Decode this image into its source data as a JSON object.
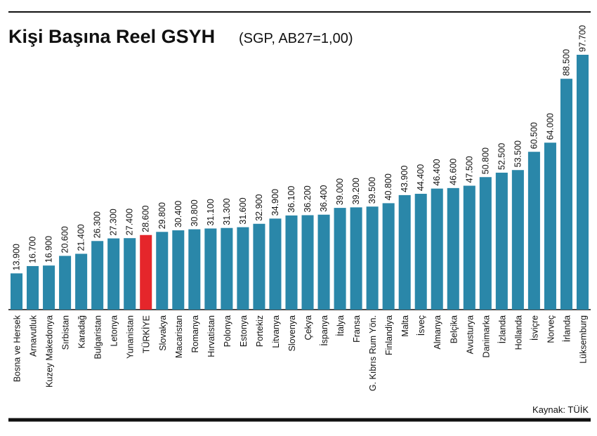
{
  "chart_data": {
    "type": "bar",
    "title": "Kişi Başına Reel GSYH",
    "subtitle": "(SGP, AB27=1,00)",
    "source": "Kaynak: TÜİK",
    "categories": [
      "Bosna ve Hersek",
      "Arnavutluk",
      "Kuzey Makedonya",
      "Sırbistan",
      "Karadağ",
      "Bulgaristan",
      "Letonya",
      "Yunanistan",
      "TÜRKİYE",
      "Slovakya",
      "Macaristan",
      "Romanya",
      "Hırvatistan",
      "Polonya",
      "Estonya",
      "Portekiz",
      "Litvanya",
      "Slovenya",
      "Çekya",
      "İspanya",
      "İtalya",
      "Fransa",
      "G. Kıbrıs Rum Yön.",
      "Finlandiya",
      "Malta",
      "İsveç",
      "Almanya",
      "Belçika",
      "Avusturya",
      "Danimarka",
      "İzlanda",
      "Hollanda",
      "İsviçre",
      "Norveç",
      "İrlanda",
      "Lüksemburg"
    ],
    "values": [
      13900,
      16700,
      16900,
      20600,
      21400,
      26300,
      27300,
      27400,
      28600,
      29800,
      30400,
      30800,
      31100,
      31300,
      31600,
      32900,
      34900,
      36100,
      36200,
      36400,
      39000,
      39200,
      39500,
      40800,
      43900,
      44400,
      46400,
      46600,
      47500,
      50800,
      52500,
      53500,
      60500,
      64000,
      88500,
      97700
    ],
    "value_labels": [
      "13.900",
      "16.700",
      "16.900",
      "20.600",
      "21.400",
      "26.300",
      "27.300",
      "27.400",
      "28.600",
      "29.800",
      "30.400",
      "30.800",
      "31.100",
      "31.300",
      "31.600",
      "32.900",
      "34.900",
      "36.100",
      "36.200",
      "36.400",
      "39.000",
      "39.200",
      "39.500",
      "40.800",
      "43.900",
      "44.400",
      "46.400",
      "46.600",
      "47.500",
      "50.800",
      "52.500",
      "53.500",
      "60.500",
      "64.000",
      "88.500",
      "97.700"
    ],
    "colors": [
      "#2a87a9",
      "#2a87a9",
      "#2a87a9",
      "#2a87a9",
      "#2a87a9",
      "#2a87a9",
      "#2a87a9",
      "#2a87a9",
      "#e5262b",
      "#2a87a9",
      "#2a87a9",
      "#2a87a9",
      "#2a87a9",
      "#2a87a9",
      "#2a87a9",
      "#2a87a9",
      "#2a87a9",
      "#2a87a9",
      "#2a87a9",
      "#2a87a9",
      "#2a87a9",
      "#2a87a9",
      "#2a87a9",
      "#2a87a9",
      "#2a87a9",
      "#2a87a9",
      "#2a87a9",
      "#2a87a9",
      "#2a87a9",
      "#2a87a9",
      "#2a87a9",
      "#2a87a9",
      "#2a87a9",
      "#2a87a9",
      "#2a87a9",
      "#2a87a9"
    ]
  }
}
